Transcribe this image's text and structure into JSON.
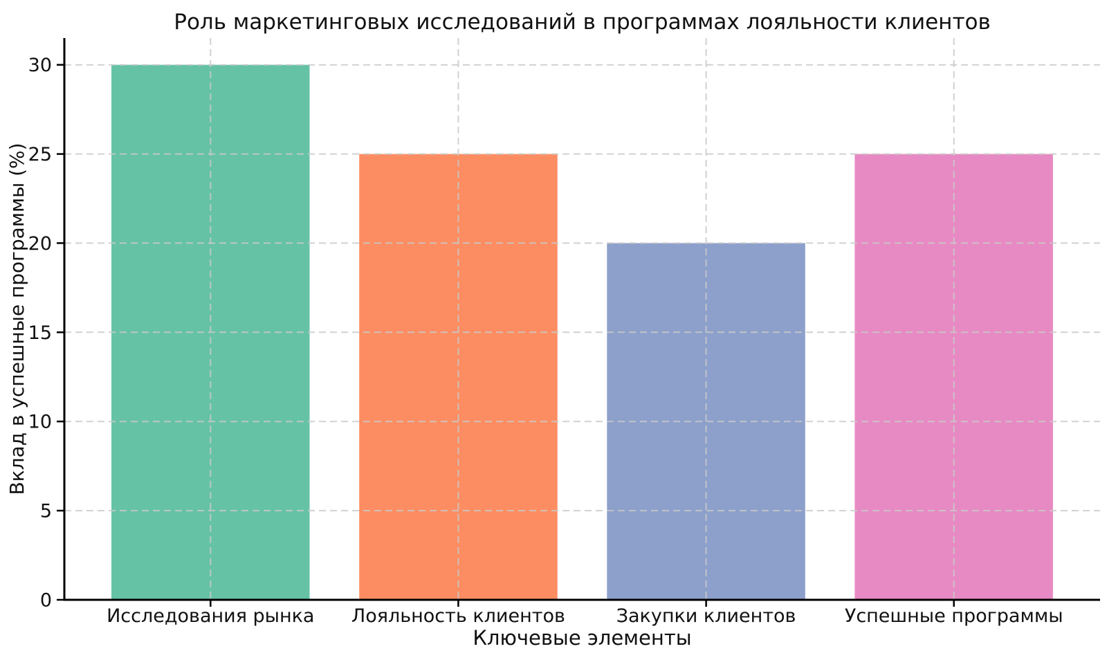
{
  "chart_data": {
    "type": "bar",
    "title": "Роль маркетинговых исследований в программах лояльности клиентов",
    "xlabel": "Ключевые элементы",
    "ylabel": "Вклад в успешные программы (%)",
    "categories": [
      "Исследования рынка",
      "Лояльность клиентов",
      "Закупки клиентов",
      "Успешные программы"
    ],
    "values": [
      30,
      25,
      20,
      25
    ],
    "bar_colors": [
      "#66c2a5",
      "#fc8d62",
      "#8da0cb",
      "#e78ac3"
    ],
    "yticks": [
      0,
      5,
      10,
      15,
      20,
      25,
      30
    ],
    "yticklabels": [
      "0",
      "5",
      "10",
      "15",
      "20",
      "25",
      "30"
    ],
    "ylim": [
      0,
      31.5
    ],
    "bar_width_fraction": 0.8,
    "grid": {
      "visible": true,
      "style": "dashed",
      "color": "#c9c9c9",
      "on_top_of_bars": true
    },
    "spine_color": "#000000",
    "text_color": "#111111",
    "legend": "none"
  }
}
